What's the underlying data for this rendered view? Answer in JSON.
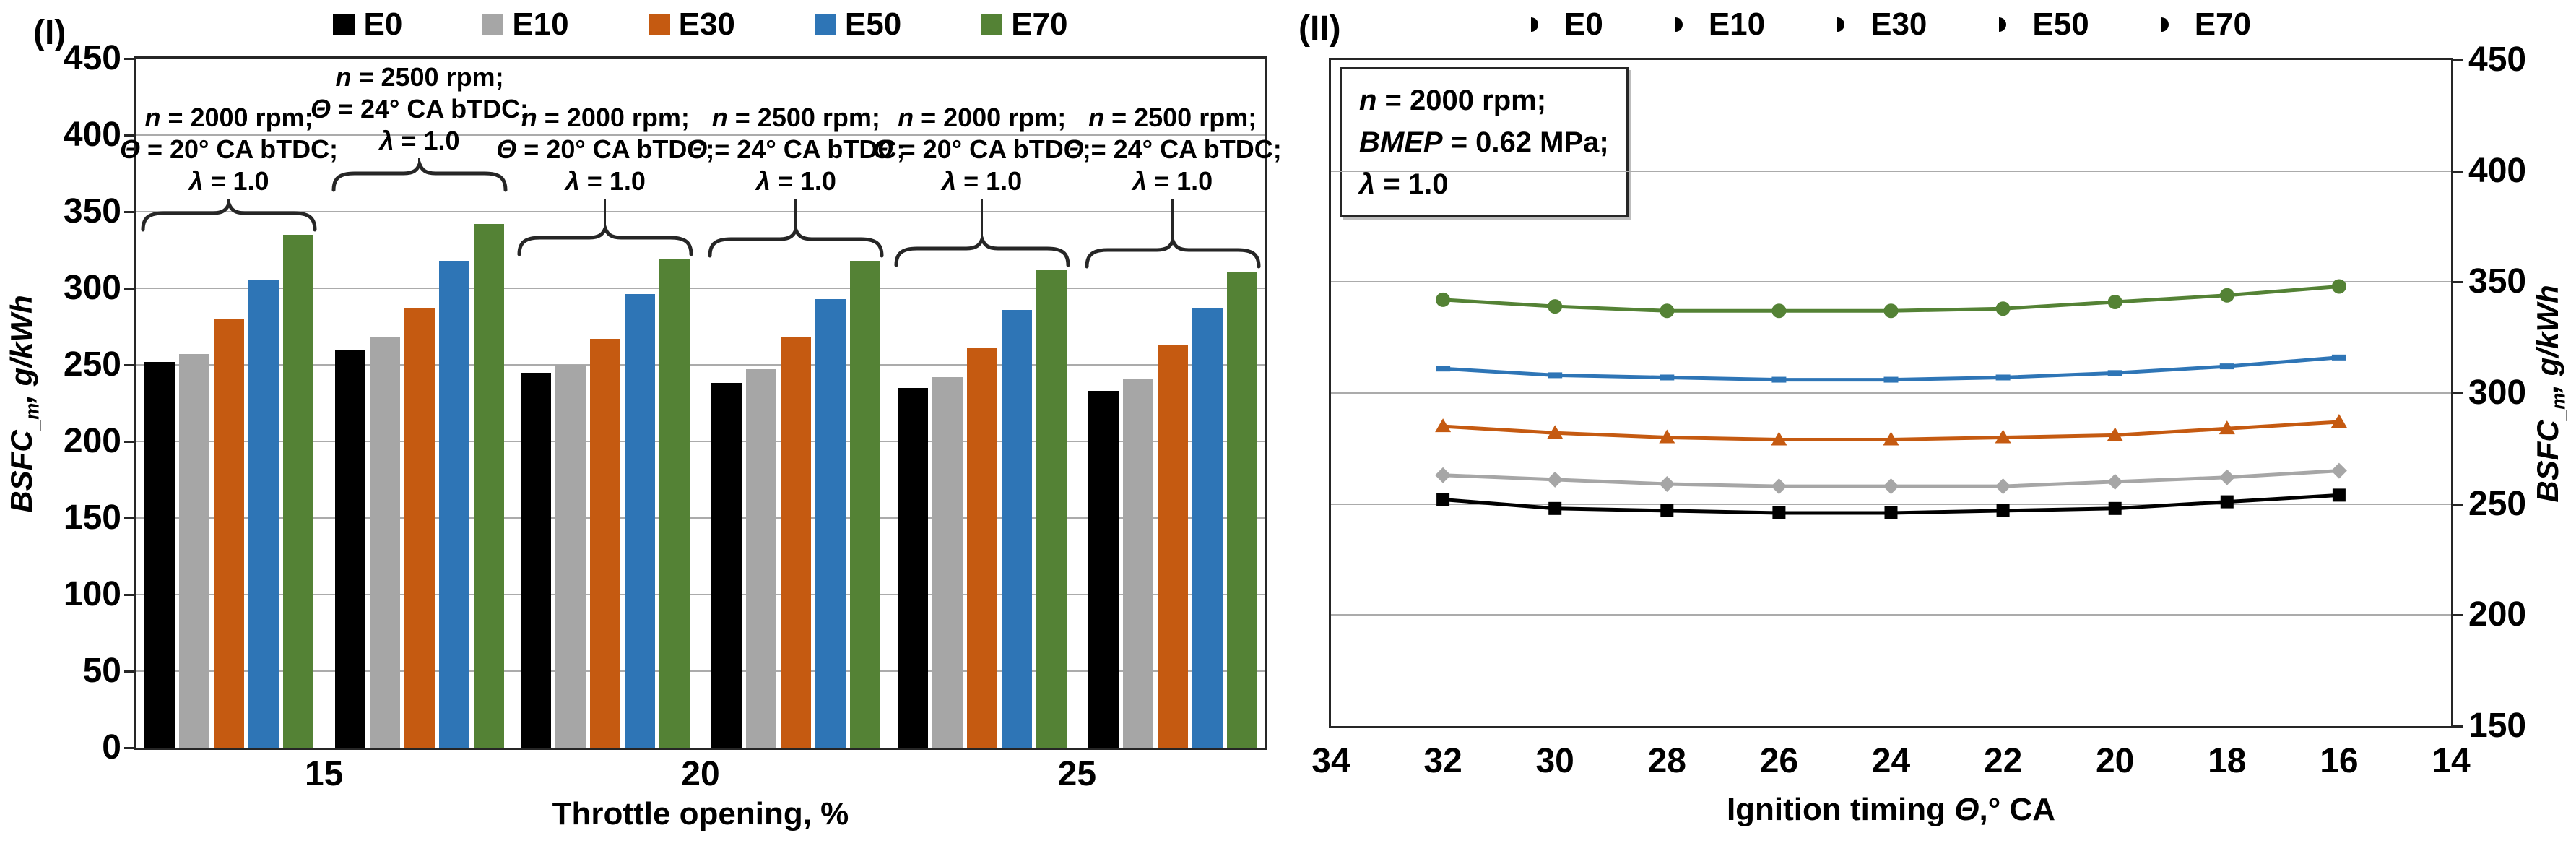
{
  "chart_data": [
    {
      "type": "bar",
      "panel": "(I)",
      "xlabel": "Throttle opening, %",
      "ylabel_parts": {
        "base": "BSFC",
        "sub": "_m",
        "rest": ", g/kWh"
      },
      "ylim": [
        0,
        450
      ],
      "yticks": [
        0,
        50,
        100,
        150,
        200,
        250,
        300,
        350,
        400,
        450
      ],
      "grid": true,
      "legend_position": "top",
      "categories": [
        "15",
        "20",
        "25"
      ],
      "series": [
        {
          "name": "E0",
          "color": "#000000"
        },
        {
          "name": "E10",
          "color": "#A6A6A6"
        },
        {
          "name": "E30",
          "color": "#C55A11"
        },
        {
          "name": "E50",
          "color": "#2E75B6"
        },
        {
          "name": "E70",
          "color": "#548235"
        }
      ],
      "clusters": [
        {
          "category": "15",
          "annotation": [
            "n = 2000 rpm;",
            "Θ = 20° CA bTDC;",
            "λ = 1.0"
          ],
          "values": [
            252,
            257,
            280,
            305,
            335
          ]
        },
        {
          "category": "15",
          "annotation": [
            "n = 2500 rpm;",
            "Θ = 24° CA bTDC;",
            "λ = 1.0"
          ],
          "values": [
            260,
            268,
            287,
            318,
            342
          ]
        },
        {
          "category": "20",
          "annotation": [
            "n = 2000 rpm;",
            "Θ = 20° CA bTDC;",
            "λ = 1.0"
          ],
          "values": [
            245,
            250,
            267,
            296,
            319
          ]
        },
        {
          "category": "20",
          "annotation": [
            "n = 2500 rpm;",
            "Θ = 24° CA bTDC;",
            "λ = 1.0"
          ],
          "values": [
            238,
            247,
            268,
            293,
            318
          ]
        },
        {
          "category": "25",
          "annotation": [
            "n = 2000 rpm;",
            "Θ = 20° CA bTDC;",
            "λ = 1.0"
          ],
          "values": [
            235,
            242,
            261,
            286,
            312
          ]
        },
        {
          "category": "25",
          "annotation": [
            "n = 2500 rpm;",
            "Θ = 24° CA bTDC;",
            "λ = 1.0"
          ],
          "values": [
            233,
            241,
            263,
            287,
            311
          ]
        }
      ]
    },
    {
      "type": "line",
      "panel": "(II)",
      "xlabel_parts": {
        "prefix": "Ignition timing ",
        "italic": "Θ",
        "suffix": ",° CA"
      },
      "ylabel_parts": {
        "base": "BSFC",
        "sub": "_m",
        "rest": ", g/kWh"
      },
      "x_axis_reversed": true,
      "xlim": [
        34,
        14
      ],
      "ylim": [
        150,
        450
      ],
      "xticks": [
        34,
        32,
        30,
        28,
        26,
        24,
        22,
        20,
        18,
        16,
        14
      ],
      "yticks": [
        450,
        400,
        350,
        300,
        250,
        200,
        150
      ],
      "grid": true,
      "legend_position": "top",
      "annotation": [
        "n = 2000 rpm;",
        "BMEP = 0.62 MPa;",
        "λ = 1.0"
      ],
      "x": [
        32,
        30,
        28,
        26,
        24,
        22,
        20,
        18,
        16
      ],
      "series": [
        {
          "name": "E0",
          "color": "#000000",
          "marker": "square",
          "values": [
            252,
            248,
            247,
            246,
            246,
            247,
            248,
            251,
            254
          ]
        },
        {
          "name": "E10",
          "color": "#A6A6A6",
          "marker": "diamond",
          "values": [
            263,
            261,
            259,
            258,
            258,
            258,
            260,
            262,
            265
          ]
        },
        {
          "name": "E30",
          "color": "#C55A11",
          "marker": "triangle",
          "values": [
            285,
            282,
            280,
            279,
            279,
            280,
            281,
            284,
            287
          ]
        },
        {
          "name": "E50",
          "color": "#2E75B6",
          "marker": "dash",
          "values": [
            311,
            308,
            307,
            306,
            306,
            307,
            309,
            312,
            316
          ]
        },
        {
          "name": "E70",
          "color": "#548235",
          "marker": "circle",
          "values": [
            342,
            339,
            337,
            337,
            337,
            338,
            341,
            344,
            348
          ]
        }
      ]
    }
  ]
}
